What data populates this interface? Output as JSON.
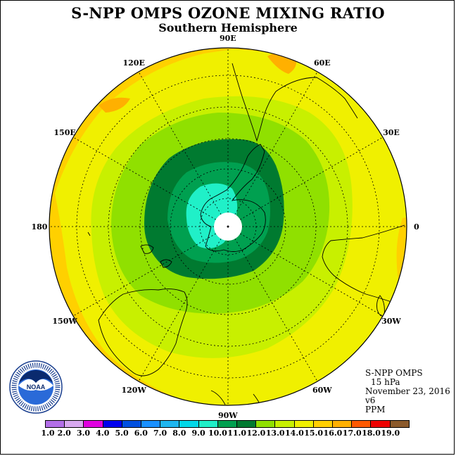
{
  "title": "S-NPP OMPS OZONE MIXING RATIO",
  "subtitle": "Southern Hemisphere",
  "meridian_labels": [
    {
      "text": "90W",
      "lon": -90
    },
    {
      "text": "60W",
      "lon": -60
    },
    {
      "text": "30W",
      "lon": -30
    },
    {
      "text": "0",
      "lon": 0
    },
    {
      "text": "30E",
      "lon": 30
    },
    {
      "text": "60E",
      "lon": 60
    },
    {
      "text": "90E",
      "lon": 90
    },
    {
      "text": "120E",
      "lon": 120
    },
    {
      "text": "150E",
      "lon": 150
    },
    {
      "text": "180",
      "lon": 180
    },
    {
      "text": "150W",
      "lon": -150
    },
    {
      "text": "120W",
      "lon": -120
    }
  ],
  "info": {
    "instrument": "S-NPP OMPS",
    "level": "15 hPa",
    "date": "November 23, 2016",
    "version": "v6",
    "units": "PPM"
  },
  "logo": {
    "text": "NOAA",
    "ring_text": "NATIONAL OCEANIC AND ATMOSPHERIC ADMINISTRATION • U.S. DEPARTMENT OF COMMERCE"
  },
  "colorbar": {
    "labels": [
      "1.0",
      "2.0",
      "3.0",
      "4.0",
      "5.0",
      "6.0",
      "7.0",
      "8.0",
      "9.0",
      "10.0",
      "11.0",
      "12.0",
      "13.0",
      "14.0",
      "15.0",
      "16.0",
      "17.0",
      "18.0",
      "19.0"
    ],
    "colors": [
      "#b26ee8",
      "#d8a8f0",
      "#e000e0",
      "#0000ee",
      "#0050e0",
      "#1a90ff",
      "#1eb6f0",
      "#00d8e8",
      "#20f0c8",
      "#00a050",
      "#007a30",
      "#90e000",
      "#c8f000",
      "#f0f000",
      "#ffd000",
      "#ffb000",
      "#ff5a00",
      "#ee0000",
      "#8b5a2b"
    ]
  },
  "palette": {
    "band_16": "#ffb000",
    "band_15": "#ffd000",
    "band_14": "#f0f000",
    "band_13": "#c8f000",
    "band_12": "#90e000",
    "band_11": "#007a30",
    "band_10": "#00a050",
    "band_9": "#20f0c8",
    "pole": "#ffffff"
  }
}
